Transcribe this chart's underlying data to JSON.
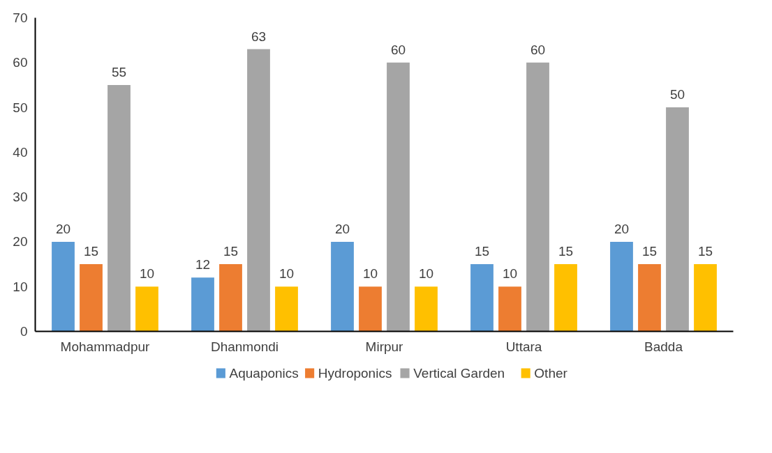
{
  "chart_data": {
    "type": "bar",
    "categories": [
      "Mohammadpur",
      "Dhanmondi",
      "Mirpur",
      "Uttara",
      "Badda"
    ],
    "series": [
      {
        "name": "Aquaponics",
        "color": "#5b9bd5",
        "values": [
          20,
          12,
          20,
          15,
          20
        ]
      },
      {
        "name": "Hydroponics",
        "color": "#ed7d31",
        "values": [
          15,
          15,
          10,
          10,
          15
        ]
      },
      {
        "name": "Vertical Garden",
        "color": "#a5a5a5",
        "values": [
          55,
          63,
          60,
          60,
          50
        ]
      },
      {
        "name": "Other",
        "color": "#ffc000",
        "values": [
          10,
          10,
          10,
          15,
          15
        ]
      }
    ],
    "ylim": [
      0,
      70
    ],
    "yticks": [
      0,
      10,
      20,
      30,
      40,
      50,
      60,
      70
    ],
    "grid": false,
    "legend": "bottom",
    "data_labels": true
  }
}
